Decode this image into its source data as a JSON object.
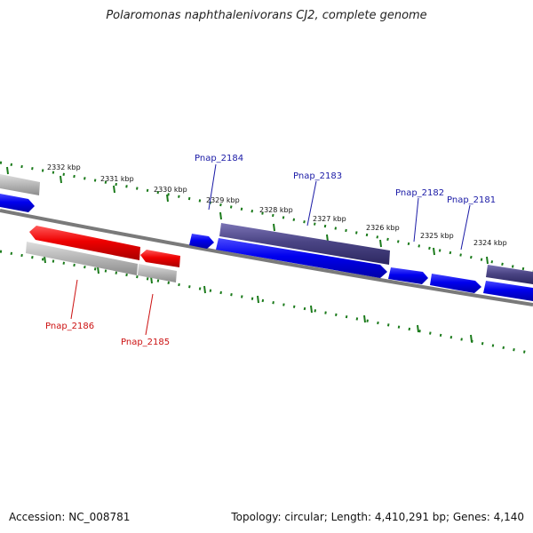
{
  "title": "Polaromonas naphthalenivorans CJ2, complete genome",
  "accession": "Accession: NC_008781",
  "summary": "Topology: circular; Length: 4,410,291 bp; Genes: 4,140",
  "colors": {
    "forward_gene": "#0000ee",
    "reverse_gene": "#ee0000",
    "forward_cds": "#4b4585",
    "feature_gray": "#b5b5b5",
    "backbone": "#7a7a7a",
    "tick_green": "#1a7a1a",
    "forward_label": "#1a1aa6",
    "reverse_label": "#cc1111"
  },
  "scale_labels": {
    "k2332": "2332 kbp",
    "k2331": "2331 kbp",
    "k2330": "2330 kbp",
    "k2329": "2329 kbp",
    "k2328": "2328 kbp",
    "k2327": "2327 kbp",
    "k2326": "2326 kbp",
    "k2325": "2325 kbp",
    "k2324": "2324 kbp"
  },
  "gene_labels": {
    "pnap2184": "Pnap_2184",
    "pnap2183": "Pnap_2183",
    "pnap2182": "Pnap_2182",
    "pnap2181": "Pnap_2181",
    "pnap2186": "Pnap_2186",
    "pnap2185": "Pnap_2185"
  }
}
